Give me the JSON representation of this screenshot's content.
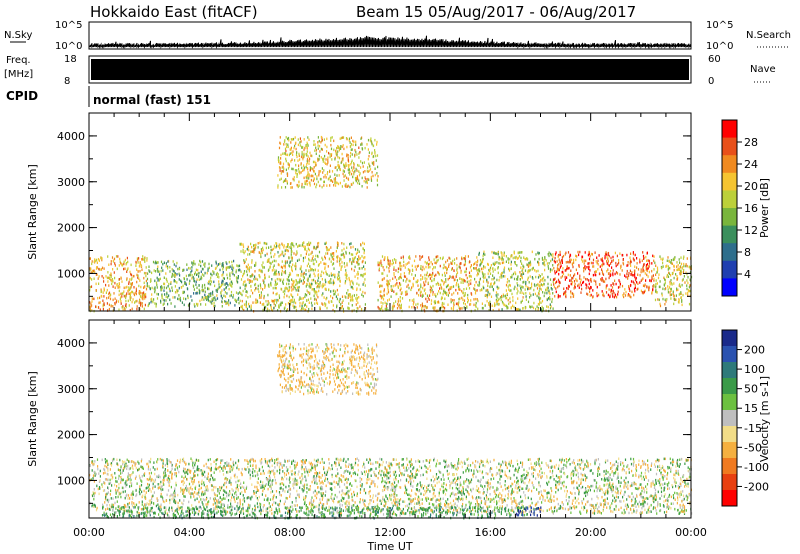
{
  "header": {
    "radar_title": "Hokkaido East (fitACF)",
    "beam_info": "Beam 15 05/Aug/2017 - 06/Aug/2017"
  },
  "nsky_panel": {
    "left_label": "N.Sky",
    "right_label": "N.Search",
    "ticks": [
      "10^5",
      "10^0"
    ]
  },
  "freq_panel": {
    "label_top": "Freq.",
    "label_bottom": "[MHz]",
    "ticks_left": [
      "18",
      "8"
    ],
    "ticks_right": [
      "60",
      "0"
    ],
    "right_label": "Nave"
  },
  "cpid_panel": {
    "label": "CPID",
    "program": "normal (fast) 151"
  },
  "chart_data": [
    {
      "type": "heatmap",
      "name": "power",
      "ylabel": "Slant Range [km]",
      "ylim": [
        180,
        4500
      ],
      "y_ticks": [
        "1000",
        "2000",
        "3000",
        "4000"
      ],
      "colorbar": {
        "label": "Power [dB]",
        "range": [
          0,
          32
        ],
        "ticks": [
          "4",
          "8",
          "12",
          "16",
          "20",
          "24",
          "28"
        ],
        "colors": [
          "#0000ff",
          "#1f3fb0",
          "#2e6e8c",
          "#3a8f5c",
          "#79b53c",
          "#bcd03a",
          "#f5c431",
          "#f08a20",
          "#e8501a",
          "#ff0000"
        ]
      },
      "regions": [
        {
          "t": [
            0.0,
            2.3
          ],
          "r": [
            200,
            1400
          ],
          "v": 22
        },
        {
          "t": [
            2.3,
            6.0
          ],
          "r": [
            300,
            1300
          ],
          "v": 14
        },
        {
          "t": [
            6.0,
            11.0
          ],
          "r": [
            200,
            1700
          ],
          "v": 18
        },
        {
          "t": [
            7.5,
            11.5
          ],
          "r": [
            2900,
            4000
          ],
          "v": 20
        },
        {
          "t": [
            11.5,
            15.5
          ],
          "r": [
            200,
            1400
          ],
          "v": 21
        },
        {
          "t": [
            15.5,
            18.5
          ],
          "r": [
            200,
            1500
          ],
          "v": 17
        },
        {
          "t": [
            18.5,
            22.5
          ],
          "r": [
            500,
            1500
          ],
          "v": 27
        },
        {
          "t": [
            22.5,
            24.0
          ],
          "r": [
            300,
            1400
          ],
          "v": 19
        }
      ]
    },
    {
      "type": "heatmap",
      "name": "velocity",
      "xlabel": "Time UT",
      "ylabel": "Slant Range [km]",
      "ylim": [
        180,
        4500
      ],
      "y_ticks": [
        "1000",
        "2000",
        "3000",
        "4000"
      ],
      "x_ticks": [
        "00:00",
        "04:00",
        "08:00",
        "12:00",
        "16:00",
        "20:00",
        "00:00"
      ],
      "colorbar": {
        "label": "Velocity [m s-1]",
        "ticks": [
          "200",
          "100",
          "50",
          "15",
          "-15",
          "-50",
          "-100",
          "-200"
        ],
        "colors": [
          "#1a2a8a",
          "#2a52b0",
          "#2e7a7a",
          "#3a9a48",
          "#6cc040",
          "#bfbfbf",
          "#f2dd88",
          "#f5b040",
          "#f07a20",
          "#e84010",
          "#ff0000"
        ]
      },
      "regions": [
        {
          "t": [
            0.0,
            24.0
          ],
          "r": [
            300,
            1500
          ],
          "v": 0
        },
        {
          "t": [
            0.5,
            17.5
          ],
          "r": [
            200,
            450
          ],
          "v": 30
        },
        {
          "t": [
            17.0,
            18.0
          ],
          "r": [
            250,
            450
          ],
          "v": 200
        },
        {
          "t": [
            7.5,
            11.5
          ],
          "r": [
            2900,
            4000
          ],
          "v": -20
        }
      ]
    }
  ]
}
